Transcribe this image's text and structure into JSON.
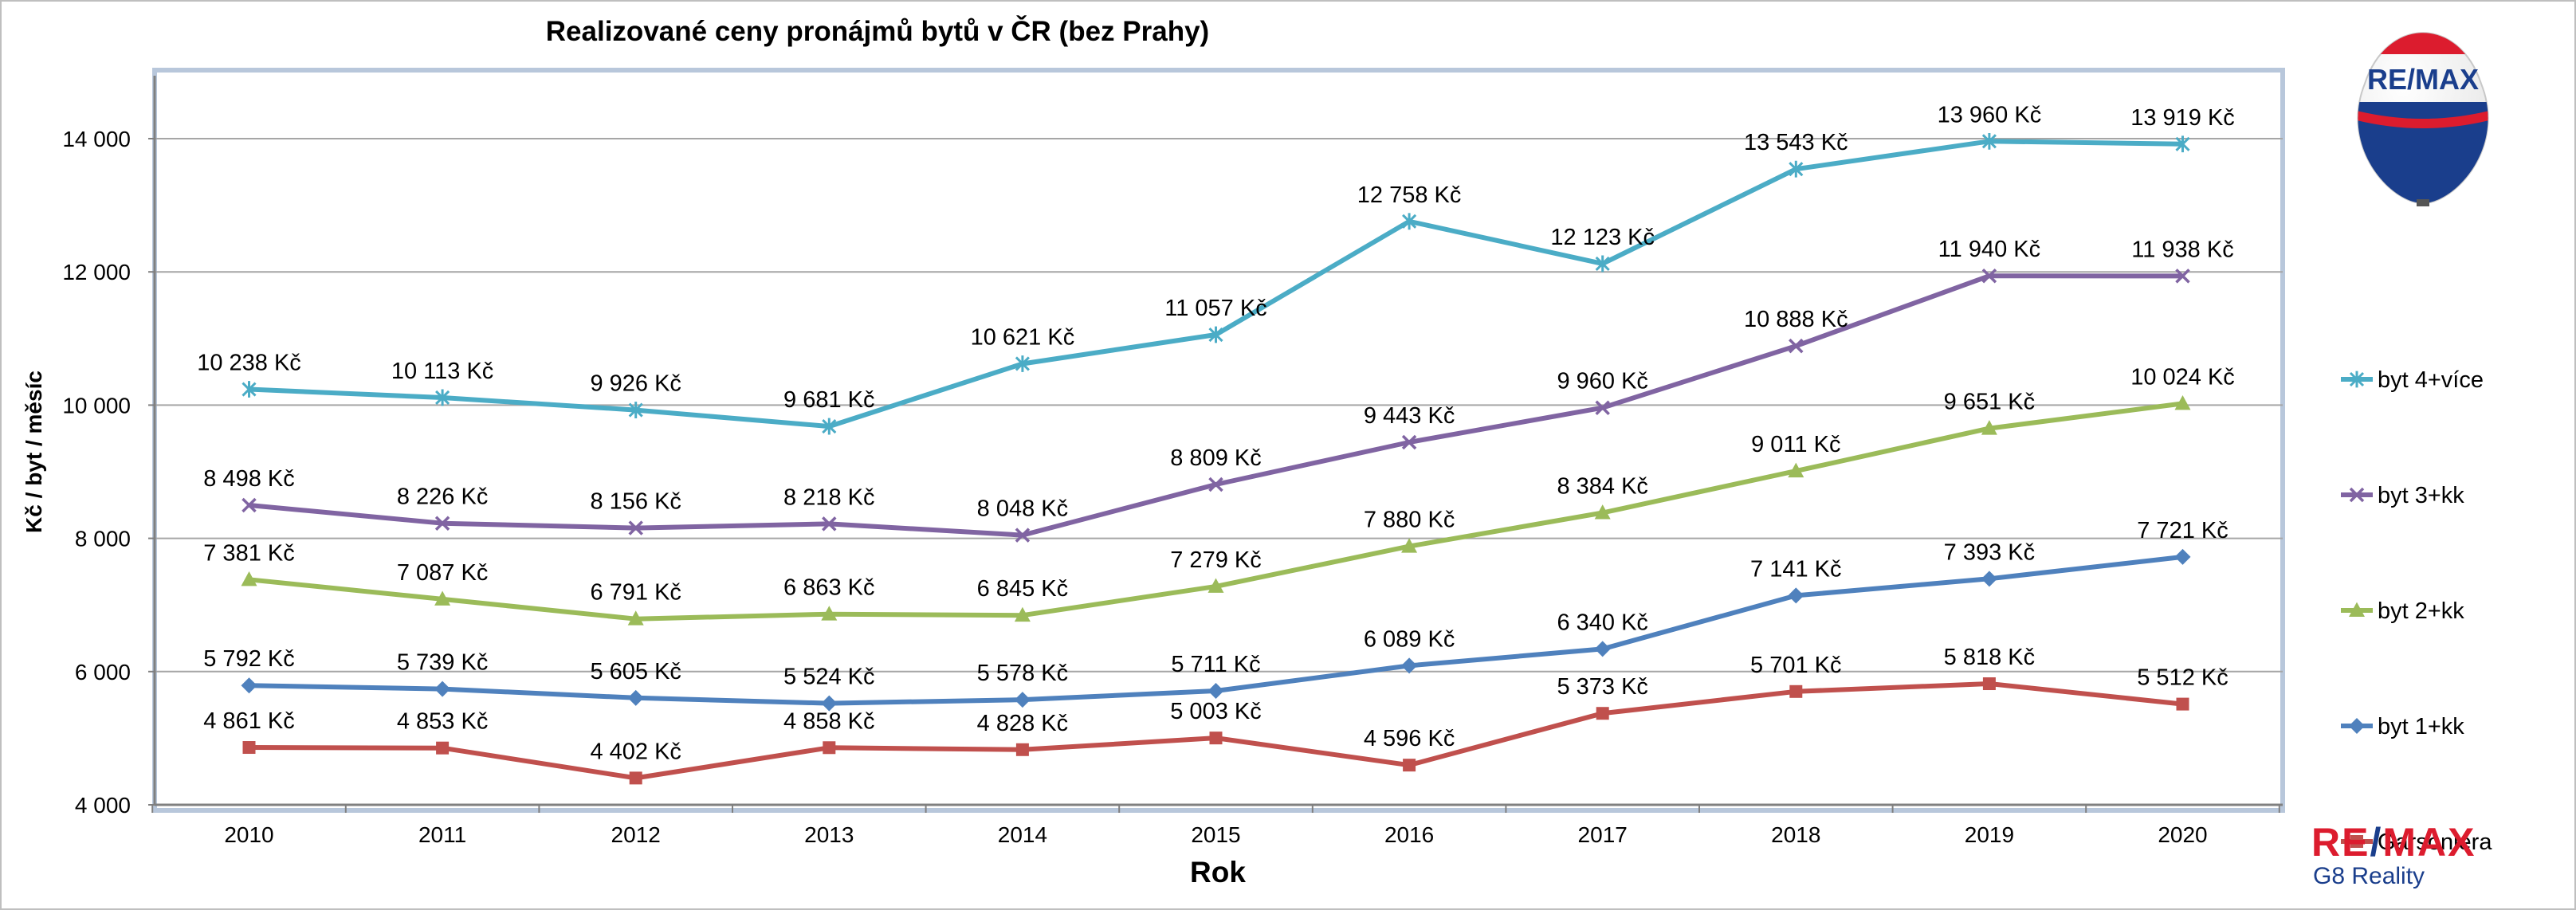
{
  "chart_data": {
    "type": "line",
    "title": "Realizované ceny pronájmů bytů v ČR (bez Prahy)",
    "xlabel": "Rok",
    "ylabel": "Kč / byt / měsíc",
    "ylim": [
      4000,
      15000
    ],
    "yticks": [
      "4 000",
      "6 000",
      "8 000",
      "10 000",
      "12 000",
      "14 000"
    ],
    "ytick_values": [
      4000,
      6000,
      8000,
      10000,
      12000,
      14000
    ],
    "categories": [
      "2010",
      "2011",
      "2012",
      "2013",
      "2014",
      "2015",
      "2016",
      "2017",
      "2018",
      "2019",
      "2020"
    ],
    "grid": true,
    "legend_position": "right",
    "series": [
      {
        "name": "byt 4+více",
        "color": "#4bacc6",
        "marker": "star",
        "values": [
          10238,
          10113,
          9926,
          9681,
          10621,
          11057,
          12758,
          12123,
          13543,
          13960,
          13919
        ],
        "labels": [
          "10 238 Kč",
          "10 113 Kč",
          "9 926 Kč",
          "9 681 Kč",
          "10 621 Kč",
          "11 057 Kč",
          "12 758 Kč",
          "12 123 Kč",
          "13 543 Kč",
          "13 960 Kč",
          "13 919 Kč"
        ]
      },
      {
        "name": "byt 3+kk",
        "color": "#8064a2",
        "marker": "x",
        "values": [
          8498,
          8226,
          8156,
          8218,
          8048,
          8809,
          9443,
          9960,
          10888,
          11940,
          11938
        ],
        "labels": [
          "8 498 Kč",
          "8 226 Kč",
          "8 156 Kč",
          "8 218 Kč",
          "8 048 Kč",
          "8 809 Kč",
          "9 443 Kč",
          "9 960 Kč",
          "10 888 Kč",
          "11 940 Kč",
          "11 938 Kč"
        ]
      },
      {
        "name": "byt 2+kk",
        "color": "#9bbb59",
        "marker": "triangle",
        "values": [
          7381,
          7087,
          6791,
          6863,
          6845,
          7279,
          7880,
          8384,
          9011,
          9651,
          10024
        ],
        "labels": [
          "7 381 Kč",
          "7 087 Kč",
          "6 791 Kč",
          "6 863 Kč",
          "6 845 Kč",
          "7 279 Kč",
          "7 880 Kč",
          "8 384 Kč",
          "9 011 Kč",
          "9 651 Kč",
          "10 024 Kč"
        ]
      },
      {
        "name": "byt 1+kk",
        "color": "#4f81bd",
        "marker": "diamond",
        "values": [
          5792,
          5739,
          5605,
          5524,
          5578,
          5711,
          6089,
          6340,
          7141,
          7393,
          7721
        ],
        "labels": [
          "5 792 Kč",
          "5 739 Kč",
          "5 605 Kč",
          "5 524 Kč",
          "5 578 Kč",
          "5 711 Kč",
          "6 089 Kč",
          "6 340 Kč",
          "7 141 Kč",
          "7 393 Kč",
          "7 721 Kč"
        ]
      },
      {
        "name": "Garsoniéra",
        "color": "#c0504d",
        "marker": "square",
        "values": [
          4861,
          4853,
          4402,
          4858,
          4828,
          5003,
          4596,
          5373,
          5701,
          5818,
          5512
        ],
        "labels": [
          "4 861 Kč",
          "4 853 Kč",
          "4 402 Kč",
          "4 858 Kč",
          "4 828 Kč",
          "5 003 Kč",
          "4 596 Kč",
          "5 373 Kč",
          "5 701 Kč",
          "5 818 Kč",
          "5 512 Kč"
        ]
      }
    ]
  },
  "logo": {
    "balloon_text": "RE/MAX",
    "brand_part1": "RE",
    "brand_slash": "/",
    "brand_part2": "MAX",
    "brand_sub": "G8 Reality",
    "colors": {
      "red": "#dc1c2e",
      "blue": "#1a3e8c"
    }
  }
}
